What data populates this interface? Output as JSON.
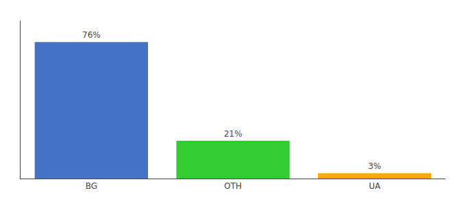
{
  "chart_data": {
    "type": "bar",
    "categories": [
      "BG",
      "OTH",
      "UA"
    ],
    "values": [
      76,
      21,
      3
    ],
    "value_labels": [
      "76%",
      "21%",
      "3%"
    ],
    "colors": [
      "#4472c4",
      "#33cc33",
      "#ffaa00"
    ],
    "ylim": [
      0,
      88
    ],
    "data_labels": true,
    "tick_labels": "x",
    "grid": false
  }
}
